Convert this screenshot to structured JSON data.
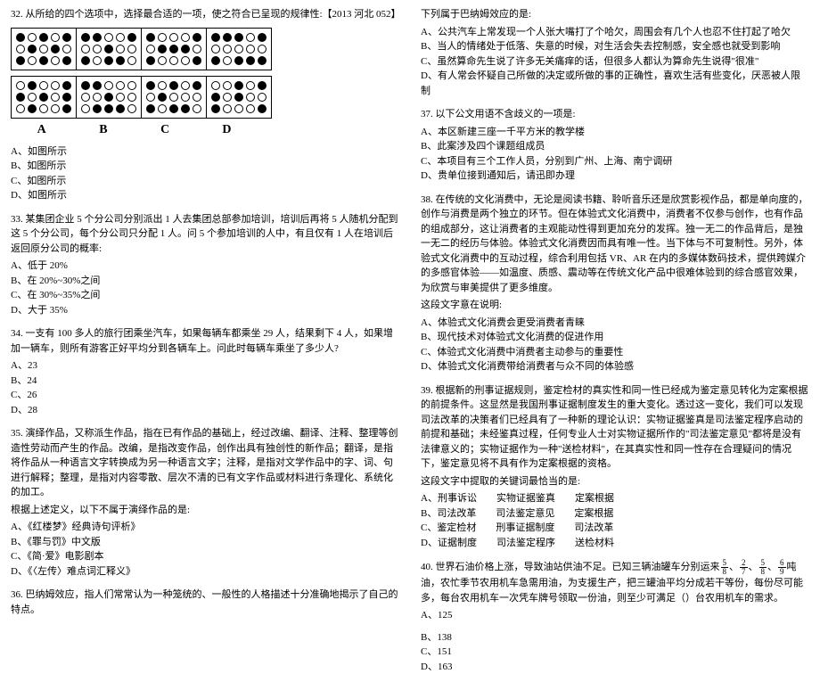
{
  "left": {
    "q32": {
      "text": "32. 从所给的四个选项中，选择最合适的一项，使之符合已呈现的规律性:【2013 河北 052】",
      "seq_cells": [
        [
          "f",
          "e",
          "f",
          "e",
          "f",
          "e",
          "f",
          "e",
          "f",
          "e",
          "f",
          "e",
          "f",
          "e",
          "f"
        ],
        [
          "f",
          "f",
          "e",
          "e",
          "f",
          "e",
          "e",
          "f",
          "e",
          "e",
          "f",
          "e",
          "f",
          "f",
          "e"
        ],
        [
          "f",
          "e",
          "e",
          "e",
          "f",
          "e",
          "f",
          "f",
          "f",
          "e",
          "f",
          "e",
          "e",
          "e",
          "f"
        ],
        [
          "f",
          "f",
          "f",
          "e",
          "f",
          "e",
          "e",
          "e",
          "e",
          "e",
          "f",
          "e",
          "f",
          "f",
          "f"
        ]
      ],
      "ans_cells": [
        [
          "e",
          "f",
          "e",
          "e",
          "f",
          "f",
          "e",
          "f",
          "e",
          "f",
          "e",
          "f",
          "e",
          "e",
          "f"
        ],
        [
          "f",
          "f",
          "e",
          "e",
          "e",
          "e",
          "e",
          "f",
          "e",
          "e",
          "e",
          "f",
          "f",
          "f",
          "e"
        ],
        [
          "f",
          "e",
          "f",
          "e",
          "f",
          "e",
          "f",
          "e",
          "e",
          "e",
          "f",
          "e",
          "f",
          "f",
          "e"
        ],
        [
          "e",
          "e",
          "f",
          "e",
          "f",
          "f",
          "e",
          "f",
          "e",
          "e",
          "f",
          "e",
          "e",
          "e",
          "f"
        ]
      ],
      "letters": [
        "A",
        "B",
        "C",
        "D"
      ],
      "opts": [
        "A、如图所示",
        "B、如图所示",
        "C、如图所示",
        "D、如图所示"
      ]
    },
    "q33": {
      "text": "33. 某集团企业 5 个分公司分别派出 1 人去集团总部参加培训，培训后再将 5 人随机分配到这 5 个分公司，每个分公司只分配 1 人。问 5 个参加培训的人中，有且仅有 1 人在培训后返回原分公司的概率:",
      "opts": [
        "A、低于 20%",
        "B、在 20%~30%之间",
        "C、在 30%~35%之间",
        "D、大于 35%"
      ]
    },
    "q34": {
      "text": "34. 一支有 100 多人的旅行团乘坐汽车，如果每辆车都乘坐 29 人，结果剩下 4 人，如果增加一辆车，则所有游客正好平均分到各辆车上。问此时每辆车乘坐了多少人?",
      "opts": [
        "A、23",
        "B、24",
        "C、26",
        "D、28"
      ]
    },
    "q35": {
      "text": "35. 演绎作品，又称派生作品，指在已有作品的基础上，经过改编、翻译、注释、整理等创造性劳动而产生的作品。改编，是指改变作品，创作出具有独创性的新作品；翻译，是指将作品从一种语言文字转换成为另一种语言文字；注释，是指对文学作品中的字、词、句进行解释；整理，是指对内容零散、层次不清的已有文字作品或材料进行条理化、系统化的加工。",
      "stem": "根据上述定义，以下不属于演绎作品的是:",
      "opts": [
        "A、《红楼梦》经典诗句评析》",
        "B、《罪与罚》中文版",
        "C、《简·爱》电影剧本",
        "D、《〈左传〉难点词汇释义》"
      ]
    },
    "q36": {
      "text": "36. 巴纳姆效应，指人们常常认为一种笼统的、一般性的人格描述十分准确地揭示了自己的特点。"
    }
  },
  "right": {
    "q36b": {
      "text": "下列属于巴纳姆效应的是:",
      "opts": [
        "A、公共汽车上常发现一个人张大嘴打了个哈欠，周围会有几个人也忍不住打起了哈欠",
        "B、当人的情绪处于低落、失意的时候，对生活会失去控制感，安全感也就受到影响",
        "C、虽然算命先生说了许多无关痛痒的话，但很多人都认为算命先生说得\"很准\"",
        "D、有人常会怀疑自己所做的决定或所做的事的正确性，喜欢生活有些变化，厌恶被人限制"
      ]
    },
    "q37": {
      "text": "37. 以下公文用语不含歧义的一项是:",
      "opts": [
        "A、本区新建三座一千平方米的教学楼",
        "B、此案涉及四个课题组成员",
        "C、本项目有三个工作人员，分别到广州、上海、南宁调研",
        "D、贵单位接到通知后，请迅即办理"
      ]
    },
    "q38": {
      "text": "38. 在传统的文化消费中，无论是阅读书籍、聆听音乐还是欣赏影视作品，都是单向度的，创作与消费是两个独立的环节。但在体验式文化消费中，消费者不仅参与创作，也有作品的组成部分，这让消费者的主观能动性得到更加充分的发挥。独一无二的作品背后，是独一无二的经历与体验。体验式文化消费因而具有唯一性。当下体与不可复制性。另外，体验式文化消费中的互动过程，综合利用包括 VR、AR 在内的多媒体数码技术，提供跨媒介的多感官体验——如温度、质感、震动等在传统文化产品中很难体验到的综合感官效果，为欣赏与审美提供了更多维度。",
      "stem": "这段文字意在说明:",
      "opts": [
        "A、体验式文化消费会更受消费者青睐",
        "B、现代技术对体验式文化消费的促进作用",
        "C、体验式文化消费中消费者主动参与的重要性",
        "D、体验式文化消费带给消费者与众不同的体验感"
      ]
    },
    "q39": {
      "text": "39. 根据新的刑事证据规则，鉴定检材的真实性和同一性已经成为鉴定意见转化为定案根据的前提条件。这显然是我国刑事证据制度发生的重大变化。透过这一变化，我们可以发现司法改革的决策者们已经具有了一种新的理论认识：实物证据鉴真是司法鉴定程序启动的前提和基础；未经鉴真过程，任何专业人士对实物证据所作的\"司法鉴定意见\"都将是没有法律意义的；实物证据作为一种\"送检材料\"，在其真实性和同一性存在合理疑问的情况下，鉴定意见将不具有作为定案根据的资格。",
      "stem": "这段文字中提取的关键词最恰当的是:",
      "opts": [
        "A、刑事诉讼　　实物证据鉴真　　定案根据",
        "B、司法改革　　司法鉴定意见　　定案根据",
        "C、鉴定检材　　刑事证据制度　　司法改革",
        "D、证据制度　　司法鉴定程序　　送检材料"
      ]
    },
    "q40": {
      "text_before": "40. 世界石油价格上涨，导致油站供油不足。已知三辆油罐车分别运来",
      "fractions": [
        [
          "5",
          "8"
        ],
        [
          "2",
          "7"
        ],
        [
          "5",
          "8"
        ],
        [
          "6",
          "9"
        ]
      ],
      "text_after": "吨油，农忙季节农用机车急需用油，为支援生产，把三罐油平均分成若干等份，每份尽可能多，每台农用机车一次凭车牌号领取一份油，则至少可满足（）台农用机车的需求。",
      "opts": [
        "A、125",
        "B、138",
        "C、151",
        "D、163"
      ]
    }
  }
}
